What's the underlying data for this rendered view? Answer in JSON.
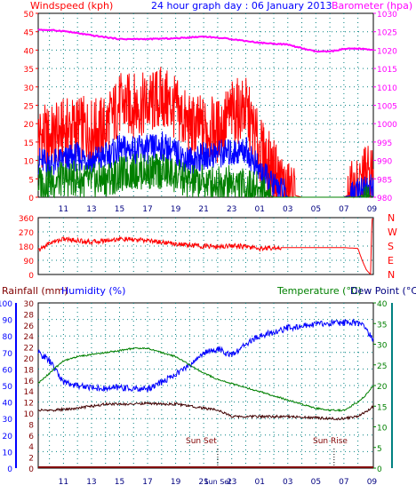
{
  "header": {
    "windspeed_label": "Windspeed (kph)",
    "title": "24 hour graph day : 06 January 2013",
    "barometer_label": "Barometer (hpa)"
  },
  "colors": {
    "red": "#ff0000",
    "blue": "#0000ff",
    "green": "#008000",
    "magenta": "#ff00ff",
    "maroon": "#800000",
    "teal": "#008080",
    "darkblue": "#000080",
    "dark": "#400000"
  },
  "chart_data": [
    {
      "type": "line",
      "x_tick_labels": [
        "11",
        "13",
        "15",
        "17",
        "19",
        "21",
        "23",
        "01",
        "03",
        "05",
        "07",
        "09"
      ],
      "y_left": {
        "label": "Windspeed (kph)",
        "ylim": [
          0,
          50
        ],
        "ticks": [
          0,
          5,
          10,
          15,
          20,
          25,
          30,
          35,
          40,
          45,
          50
        ]
      },
      "y_right": {
        "label": "Barometer (hpa)",
        "ylim": [
          980,
          1030
        ],
        "ticks": [
          980,
          985,
          990,
          995,
          1000,
          1005,
          1010,
          1015,
          1020,
          1025,
          1030
        ]
      },
      "grid": true,
      "series": [
        {
          "kind": "gust",
          "color": "red",
          "axis": "left",
          "x": [
            9.2,
            10,
            11,
            12,
            13,
            14,
            15,
            16,
            17,
            18,
            19,
            20,
            21,
            22,
            23,
            0,
            1,
            1.5,
            2,
            2.5,
            3,
            4,
            5,
            6,
            7,
            8,
            8.5,
            9.1
          ],
          "values": [
            17,
            16,
            18,
            19,
            18,
            19,
            25,
            25,
            25,
            27,
            24,
            19,
            19,
            18,
            23,
            24,
            13,
            10,
            7,
            4,
            1,
            0,
            0,
            0,
            0,
            2,
            6,
            5
          ]
        },
        {
          "kind": "average",
          "color": "blue",
          "axis": "left",
          "x": [
            9.2,
            10,
            11,
            12,
            13,
            14,
            15,
            16,
            17,
            18,
            19,
            20,
            21,
            22,
            23,
            0,
            1,
            1.5,
            2,
            2.5,
            3,
            4,
            5,
            6,
            7,
            8,
            8.5,
            9.1
          ],
          "values": [
            10,
            9,
            10,
            11,
            10,
            11,
            13,
            13,
            13,
            14,
            12,
            10,
            11,
            12,
            12,
            13,
            7,
            5,
            3,
            2,
            0,
            0,
            0,
            0,
            0,
            1,
            3,
            2
          ]
        },
        {
          "kind": "lull",
          "color": "green",
          "axis": "left",
          "x": [
            9.2,
            10,
            11,
            12,
            13,
            14,
            15,
            16,
            17,
            18,
            19,
            20,
            21,
            22,
            23,
            0,
            1,
            1.5,
            2,
            2.5,
            3,
            4,
            5,
            6,
            7,
            8,
            8.5,
            9.1
          ],
          "values": [
            4,
            4,
            5,
            5,
            4,
            5,
            6,
            7,
            7,
            7,
            6,
            4,
            4,
            4,
            4,
            3,
            2,
            1,
            0,
            0,
            0,
            0,
            0,
            0,
            0,
            0,
            1,
            0
          ]
        },
        {
          "kind": "barometer",
          "color": "magenta",
          "axis": "right",
          "x": [
            9.2,
            11,
            13,
            15,
            17,
            19,
            21,
            23,
            1,
            3,
            4,
            5,
            6,
            7,
            8,
            9.1
          ],
          "values": [
            1025.6,
            1025.2,
            1024,
            1023,
            1023,
            1023.2,
            1023.7,
            1023,
            1022,
            1021.5,
            1020.5,
            1019.6,
            1019.6,
            1020.3,
            1020.4,
            1020.1
          ]
        }
      ]
    },
    {
      "type": "line",
      "y_left": {
        "ylim": [
          0,
          360
        ],
        "ticks": [
          0,
          90,
          180,
          270,
          360
        ]
      },
      "y_right": {
        "labels": [
          "N",
          "W",
          "S",
          "E",
          "N"
        ]
      },
      "series": [
        {
          "kind": "wind direction",
          "color": "red",
          "x": [
            9.2,
            10,
            11,
            12,
            13,
            14,
            15,
            16,
            17,
            18,
            19,
            20,
            21,
            22,
            23,
            0,
            1,
            2,
            3,
            4,
            5,
            6,
            7,
            8,
            8.3,
            8.6,
            8.9,
            9.0
          ],
          "values": [
            150,
            200,
            225,
            215,
            205,
            215,
            225,
            220,
            215,
            205,
            195,
            185,
            180,
            175,
            185,
            175,
            165,
            170,
            170,
            170,
            170,
            170,
            170,
            165,
            90,
            30,
            0,
            350
          ]
        }
      ]
    },
    {
      "type": "line",
      "x_tick_labels": [
        "11",
        "13",
        "15",
        "17",
        "19",
        "21",
        "Sun Set",
        "23",
        "01",
        "03",
        "05",
        "07",
        "09"
      ],
      "y_axes": [
        {
          "label": "Humidity (%)",
          "ylim": [
            0,
            100
          ],
          "ticks": [
            0,
            10,
            20,
            30,
            40,
            50,
            60,
            70,
            80,
            90,
            100
          ]
        },
        {
          "label": "Rainfall (mm)",
          "ylim": [
            0,
            30
          ],
          "ticks": [
            0,
            2,
            4,
            6,
            8,
            10,
            12,
            14,
            16,
            18,
            20,
            22,
            24,
            26,
            28,
            30
          ]
        },
        {
          "label": "Temperature (°C)",
          "ylim": [
            0,
            40
          ],
          "ticks": [
            0,
            5,
            10,
            15,
            20,
            25,
            30,
            35,
            40
          ]
        },
        {
          "label": "Dew Point (°C)",
          "ylim": [
            0,
            40
          ]
        }
      ],
      "annotations": [
        "Sun Set",
        "Sun Rise"
      ],
      "series": [
        {
          "kind": "humidity",
          "color": "blue",
          "axis": "humidity",
          "x": [
            9.2,
            10,
            11,
            12,
            13,
            14,
            15,
            16,
            17,
            18,
            19,
            20,
            21,
            22,
            23,
            0,
            1,
            2,
            3,
            4,
            5,
            6,
            7,
            8,
            8.5,
            9.1
          ],
          "values": [
            70,
            65,
            52,
            50,
            49,
            48,
            49,
            48,
            48,
            52,
            57,
            62,
            70,
            72,
            68,
            75,
            80,
            82,
            85,
            86,
            87,
            88,
            88,
            88,
            85,
            77
          ]
        },
        {
          "kind": "temperature",
          "color": "green",
          "axis": "temperature",
          "x": [
            9.2,
            10,
            11,
            12,
            13,
            14,
            15,
            16,
            17,
            18,
            19,
            20,
            21,
            22,
            23,
            0,
            1,
            2,
            3,
            4,
            5,
            6,
            7,
            8,
            8.5,
            9.1
          ],
          "values": [
            20.5,
            23,
            26,
            27,
            27.5,
            28,
            28.5,
            29,
            29,
            28,
            27,
            25,
            23,
            21.5,
            20.5,
            19.5,
            18.5,
            17.5,
            16.5,
            15.5,
            14.5,
            14,
            14,
            16,
            17.5,
            20
          ]
        },
        {
          "kind": "dew point",
          "color": "dark",
          "axis": "temperature",
          "x": [
            9.2,
            10,
            11,
            12,
            13,
            14,
            15,
            16,
            17,
            18,
            19,
            20,
            21,
            22,
            23,
            0,
            1,
            2,
            3,
            4,
            5,
            6,
            7,
            8,
            8.5,
            9.1
          ],
          "values": [
            14,
            14,
            14.2,
            14.5,
            15,
            15.5,
            15.5,
            15.5,
            15.7,
            15.5,
            15.5,
            15,
            14.5,
            14,
            12.5,
            12.5,
            12.5,
            12.5,
            12.5,
            12.3,
            12.2,
            12,
            12,
            12.5,
            13.5,
            15
          ]
        },
        {
          "kind": "rainfall",
          "color": "maroon",
          "axis": "rainfall",
          "x": [
            9.2,
            9.1
          ],
          "values": [
            0,
            0
          ]
        }
      ]
    }
  ],
  "panel3_labels": {
    "rainfall": "Rainfall (mm)",
    "humidity": "Humidity (%)",
    "temperature": "Temperature (°C)",
    "dewpoint": "Dew Point (°C)",
    "sunset": "Sun Set",
    "sunrise": "Sun Rise",
    "sun_tick": "Sun Set"
  }
}
